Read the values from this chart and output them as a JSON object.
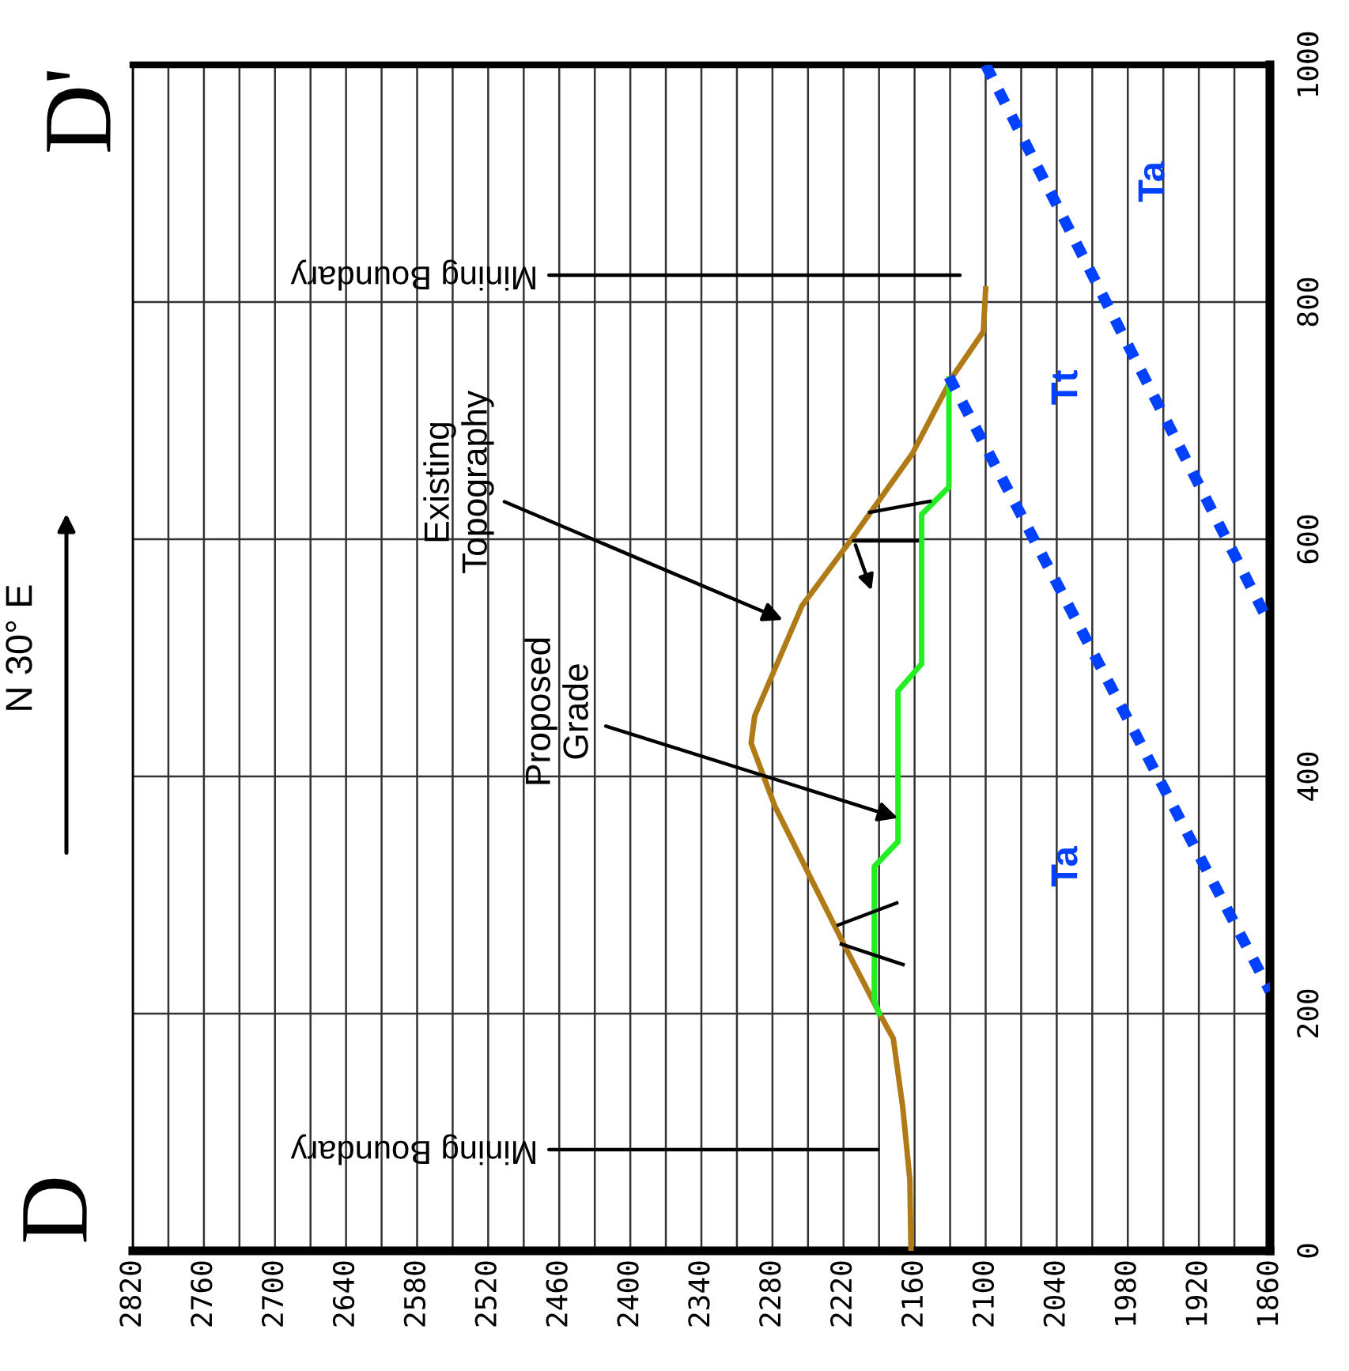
{
  "chart_data": {
    "type": "line",
    "annotations": [
      "D",
      "D'",
      "N 30° E",
      "Mining Boundary",
      "Mining Boundary",
      "Existing\nTopography",
      {
        "text": "Proposed\nGrade",
        "x": 2174,
        "y": 365
      },
      "Ta",
      "Tt",
      "Ta"
    ],
    "series": [
      {
        "color": "#b07a16",
        "line_style": "solid",
        "x": [
          2163,
          2164,
          2170,
          2178,
          2189,
          2220,
          2278,
          2298,
          2295,
          2255,
          2214,
          2162,
          2128,
          2102,
          2100
        ],
        "values": [
          0,
          60,
          121,
          179,
          199,
          259,
          375,
          428,
          451,
          544,
          599,
          672,
          737,
          775,
          811
        ]
      },
      {
        "color": "#22ee22",
        "line_style": "solid",
        "x": [
          2190,
          2194,
          2194,
          2174,
          2174,
          2154,
          2154,
          2131,
          2131
        ],
        "values": [
          200,
          211,
          324,
          345,
          472,
          495,
          621,
          644,
          735
        ]
      },
      {
        "color": "#0040ff",
        "line_style": "dashed",
        "x": [
          2131,
          1860
        ],
        "values": [
          737,
          219
        ]
      },
      {
        "color": "#0040ff",
        "line_style": "dashed",
        "x": [
          2100,
          1860
        ],
        "values": [
          1000,
          528
        ]
      }
    ],
    "xlim": [
      2820,
      1860
    ],
    "xticks": [
      2820,
      {
        "value": 2790,
        "label": null
      },
      2760,
      {
        "value": 2730,
        "label": null
      },
      2700,
      {
        "value": 2670,
        "label": null
      },
      2640,
      {
        "value": 2610,
        "label": null
      },
      2580,
      {
        "value": 2550,
        "label": null
      },
      2520,
      {
        "value": 2490,
        "label": null
      },
      2460,
      {
        "value": 2430,
        "label": null
      },
      2400,
      {
        "value": 2370,
        "label": null
      },
      2340,
      {
        "value": 2310,
        "label": null
      },
      2280,
      {
        "value": 2250,
        "label": null
      },
      2220,
      {
        "value": 2190,
        "label": null
      },
      2160,
      {
        "value": 2130,
        "label": null
      },
      2100,
      {
        "value": 2070,
        "label": null
      },
      2040,
      {
        "value": 2010,
        "label": null
      },
      1980,
      {
        "value": 1950,
        "label": null
      },
      1920,
      {
        "value": 1890,
        "label": null
      },
      1860
    ],
    "ylim": [
      0,
      1000
    ],
    "yticks": [
      0,
      200,
      400,
      600,
      800,
      1000
    ],
    "grid": true,
    "marker": "none"
  }
}
